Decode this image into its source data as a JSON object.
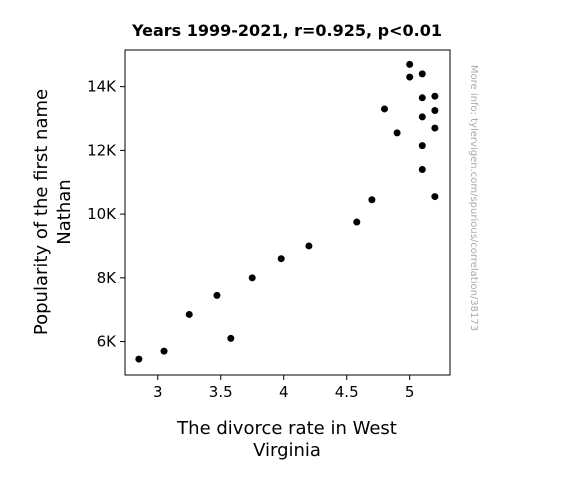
{
  "chart_data": {
    "type": "scatter",
    "title": "Years 1999-2021, r=0.925, p<0.01",
    "xlabel_lines": [
      "The divorce rate in West",
      "Virginia"
    ],
    "ylabel_lines": [
      "Popularity of the first name",
      "Nathan"
    ],
    "xlim": [
      2.74,
      5.32
    ],
    "ylim": [
      4950,
      15150
    ],
    "xticks": [
      3,
      3.5,
      4,
      4.5,
      5
    ],
    "xtick_labels": [
      "3",
      "3.5",
      "4",
      "4.5",
      "5"
    ],
    "yticks": [
      6000,
      8000,
      10000,
      12000,
      14000
    ],
    "ytick_labels": [
      "6K",
      "8K",
      "10K",
      "12K",
      "14K"
    ],
    "grid": false,
    "marker_color": "#000000",
    "points": [
      {
        "x": 2.85,
        "y": 5450
      },
      {
        "x": 3.05,
        "y": 5700
      },
      {
        "x": 3.25,
        "y": 6850
      },
      {
        "x": 3.47,
        "y": 7450
      },
      {
        "x": 3.58,
        "y": 6100
      },
      {
        "x": 3.75,
        "y": 8000
      },
      {
        "x": 3.98,
        "y": 8600
      },
      {
        "x": 4.2,
        "y": 9000
      },
      {
        "x": 4.58,
        "y": 9750
      },
      {
        "x": 4.7,
        "y": 10450
      },
      {
        "x": 4.8,
        "y": 13300
      },
      {
        "x": 4.9,
        "y": 12550
      },
      {
        "x": 5.0,
        "y": 14700
      },
      {
        "x": 5.0,
        "y": 14300
      },
      {
        "x": 5.1,
        "y": 14400
      },
      {
        "x": 5.1,
        "y": 13650
      },
      {
        "x": 5.1,
        "y": 13050
      },
      {
        "x": 5.1,
        "y": 12150
      },
      {
        "x": 5.1,
        "y": 11400
      },
      {
        "x": 5.2,
        "y": 13700
      },
      {
        "x": 5.2,
        "y": 13250
      },
      {
        "x": 5.2,
        "y": 12700
      },
      {
        "x": 5.2,
        "y": 10550
      }
    ]
  },
  "side_note": "More info: tylervigen.com/spurious/correlation/38173"
}
